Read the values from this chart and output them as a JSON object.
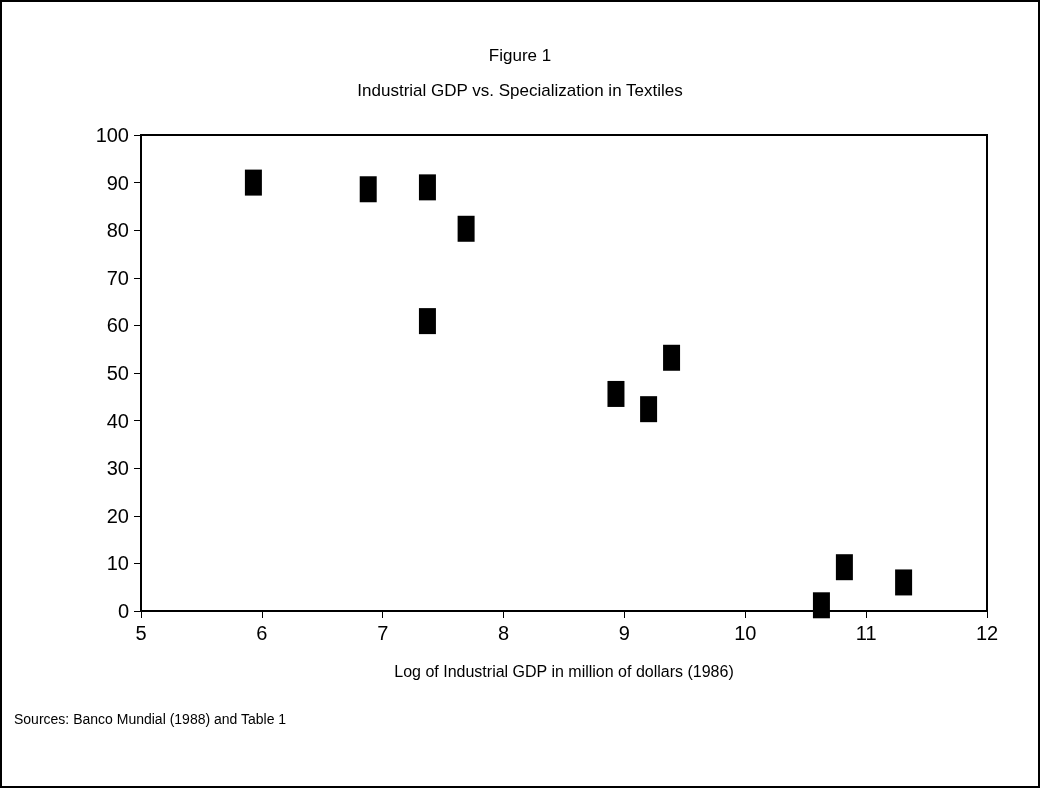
{
  "chart_data": {
    "type": "scatter",
    "title": "Figure 1",
    "subtitle": "Industrial GDP vs. Specialization in Textiles",
    "xlabel": "Log of Industrial GDP in million of dollars (1986)",
    "annotations": [
      "Sources: Banco Mundial (1988) and Table 1"
    ],
    "x": [
      5.93,
      6.88,
      7.37,
      7.69,
      7.37,
      8.93,
      9.2,
      9.39,
      10.63,
      10.82,
      11.31
    ],
    "values": [
      90,
      88.6,
      89,
      80.3,
      60.9,
      45.6,
      42.4,
      53.2,
      1.2,
      9.2,
      6
    ],
    "color": "#000000",
    "marker": "square",
    "xlim": [
      5,
      12
    ],
    "xticks": [
      5,
      6,
      7,
      8,
      9,
      10,
      11,
      12
    ],
    "ylim": [
      0,
      100
    ],
    "yticks": [
      0,
      10,
      20,
      30,
      40,
      50,
      60,
      70,
      80,
      90,
      100
    ],
    "grid": false
  }
}
